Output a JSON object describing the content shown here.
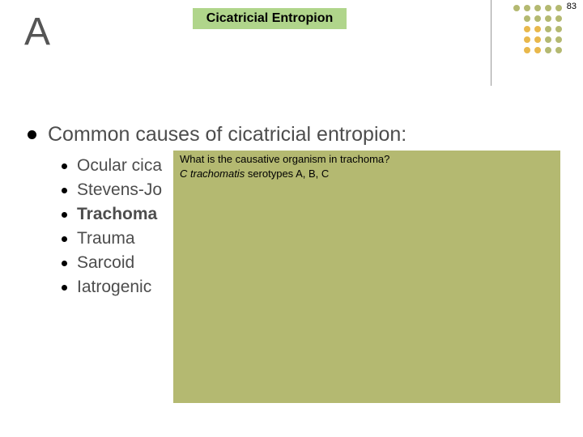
{
  "page_number": "83",
  "title": "Cicatricial Entropion",
  "title_bg": "#b0d58b",
  "letter": "A",
  "dot_grid": {
    "rows": [
      [
        "#b4b971",
        "#b4b971",
        "#b4b971",
        "#b4b971",
        "#b4b971"
      ],
      [
        "#b4b971",
        "#b4b971",
        "#b4b971",
        "#b4b971"
      ],
      [
        "#e8b84c",
        "#e8b84c",
        "#b4b971",
        "#b4b971"
      ],
      [
        "#e8b84c",
        "#e8b84c",
        "#b4b971",
        "#b4b971"
      ],
      [
        "#e8b84c",
        "#e8b84c",
        "#b4b971",
        "#b4b971"
      ]
    ]
  },
  "main_bullet": "Common causes of cicatricial entropion:",
  "sub_items": [
    {
      "text": "Ocular cica",
      "bold": false
    },
    {
      "text": "Stevens-Jo",
      "bold": false
    },
    {
      "text": "Trachoma",
      "bold": true
    },
    {
      "text": "Trauma",
      "bold": false
    },
    {
      "text": "Sarcoid",
      "bold": false
    },
    {
      "text": "Iatrogenic",
      "bold": false
    }
  ],
  "overlay": {
    "bg": "#b4b971",
    "question": "What is the causative organism in trachoma?",
    "answer_italic": "C trachomatis",
    "answer_rest": " serotypes  A, B, C"
  }
}
